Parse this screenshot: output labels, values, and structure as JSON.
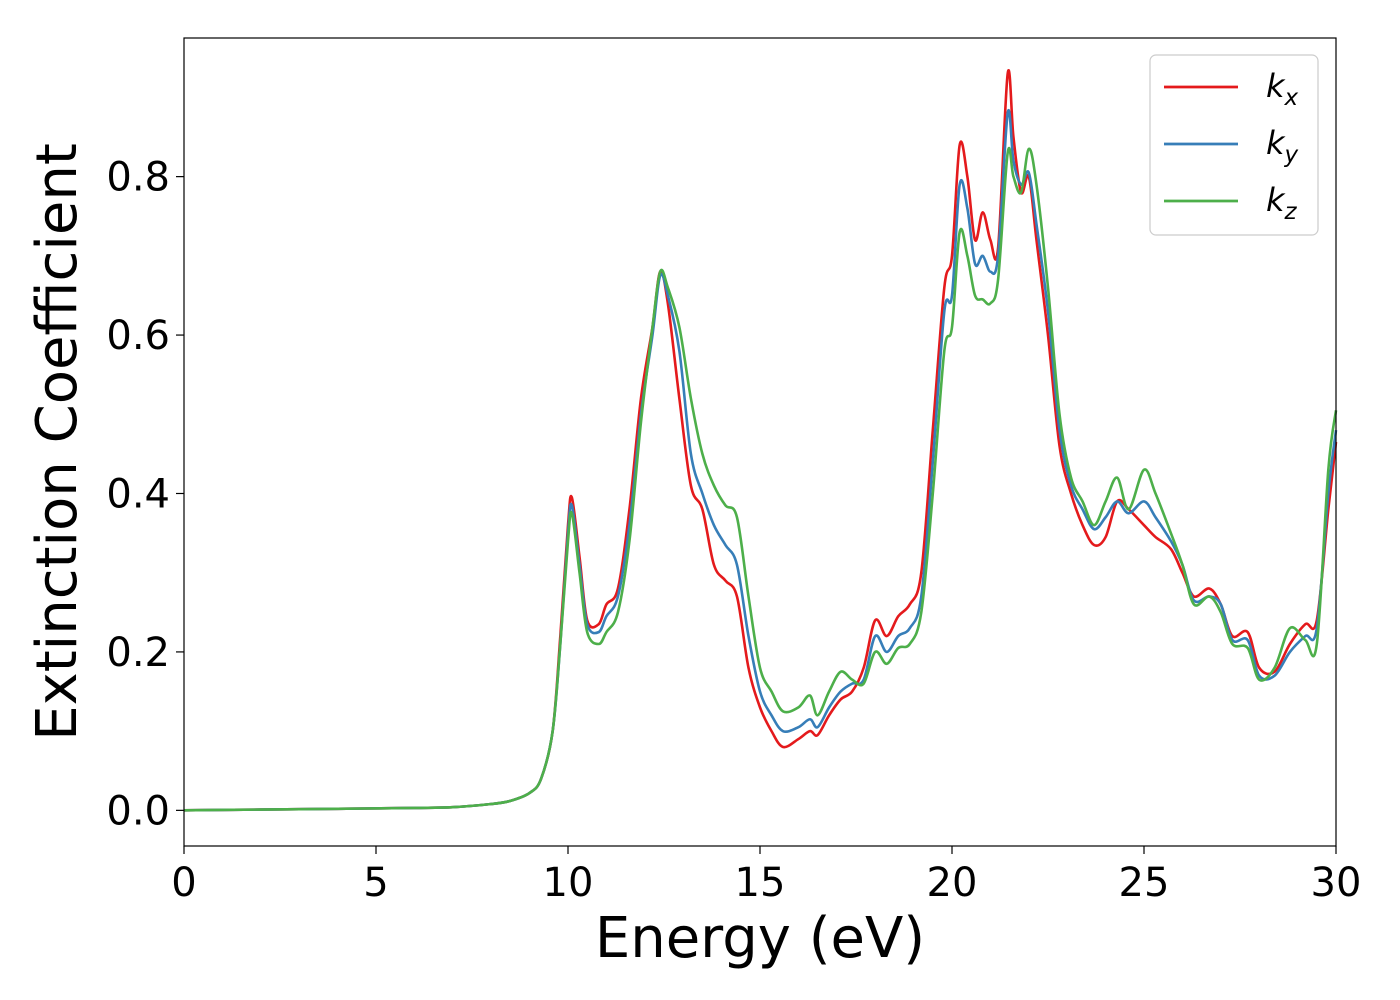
{
  "chart_data": {
    "type": "line",
    "xlabel": "Energy (eV)",
    "ylabel": "Extinction Coefficient",
    "xlim": [
      0,
      30
    ],
    "ylim": [
      -0.045,
      0.975
    ],
    "x_ticks": [
      0,
      5,
      10,
      15,
      20,
      25,
      30
    ],
    "y_ticks": [
      0.0,
      0.2,
      0.4,
      0.6,
      0.8
    ],
    "x_tick_labels": [
      "0",
      "5",
      "10",
      "15",
      "20",
      "25",
      "30"
    ],
    "y_tick_labels": [
      "0.0",
      "0.2",
      "0.4",
      "0.6",
      "0.8"
    ],
    "grid": false,
    "legend_position": "top-right",
    "x": [
      0,
      2,
      4,
      6,
      7,
      8,
      8.5,
      9,
      9.3,
      9.6,
      9.8,
      10.0,
      10.1,
      10.3,
      10.5,
      10.8,
      11.0,
      11.3,
      11.6,
      11.9,
      12.2,
      12.4,
      12.6,
      12.9,
      13.2,
      13.5,
      13.8,
      14.1,
      14.4,
      14.7,
      15.0,
      15.3,
      15.6,
      16.0,
      16.3,
      16.5,
      16.8,
      17.1,
      17.4,
      17.7,
      18.0,
      18.3,
      18.6,
      18.9,
      19.2,
      19.5,
      19.8,
      20.0,
      20.2,
      20.4,
      20.6,
      20.8,
      21.0,
      21.2,
      21.45,
      21.6,
      21.8,
      22.0,
      22.2,
      22.5,
      22.8,
      23.1,
      23.4,
      23.7,
      24.0,
      24.3,
      24.6,
      25.0,
      25.3,
      25.7,
      26.0,
      26.3,
      26.7,
      27.0,
      27.3,
      27.7,
      28.0,
      28.4,
      28.8,
      29.2,
      29.5,
      29.8,
      30.0
    ],
    "series": [
      {
        "name": "k_x",
        "color": "#e41a1c",
        "values": [
          0.0,
          0.001,
          0.002,
          0.003,
          0.004,
          0.008,
          0.012,
          0.022,
          0.04,
          0.1,
          0.22,
          0.36,
          0.395,
          0.32,
          0.24,
          0.235,
          0.26,
          0.28,
          0.38,
          0.52,
          0.61,
          0.68,
          0.64,
          0.52,
          0.41,
          0.38,
          0.31,
          0.29,
          0.27,
          0.18,
          0.13,
          0.1,
          0.08,
          0.09,
          0.1,
          0.095,
          0.12,
          0.14,
          0.15,
          0.18,
          0.24,
          0.22,
          0.245,
          0.26,
          0.3,
          0.48,
          0.66,
          0.7,
          0.84,
          0.8,
          0.72,
          0.755,
          0.72,
          0.71,
          0.93,
          0.85,
          0.78,
          0.8,
          0.72,
          0.6,
          0.46,
          0.4,
          0.36,
          0.335,
          0.345,
          0.39,
          0.38,
          0.36,
          0.345,
          0.33,
          0.3,
          0.27,
          0.28,
          0.26,
          0.22,
          0.225,
          0.18,
          0.175,
          0.21,
          0.235,
          0.24,
          0.38,
          0.465
        ]
      },
      {
        "name": "k_y",
        "color": "#377eb8",
        "values": [
          0.0,
          0.001,
          0.002,
          0.003,
          0.004,
          0.008,
          0.012,
          0.022,
          0.04,
          0.1,
          0.21,
          0.35,
          0.385,
          0.31,
          0.235,
          0.225,
          0.245,
          0.27,
          0.36,
          0.5,
          0.6,
          0.675,
          0.65,
          0.58,
          0.45,
          0.4,
          0.36,
          0.335,
          0.31,
          0.22,
          0.15,
          0.12,
          0.1,
          0.105,
          0.115,
          0.105,
          0.13,
          0.15,
          0.16,
          0.165,
          0.22,
          0.2,
          0.22,
          0.23,
          0.27,
          0.44,
          0.63,
          0.65,
          0.79,
          0.76,
          0.69,
          0.7,
          0.68,
          0.7,
          0.88,
          0.82,
          0.79,
          0.805,
          0.74,
          0.63,
          0.48,
          0.41,
          0.38,
          0.355,
          0.37,
          0.39,
          0.375,
          0.39,
          0.37,
          0.34,
          0.31,
          0.265,
          0.27,
          0.26,
          0.215,
          0.215,
          0.17,
          0.17,
          0.2,
          0.22,
          0.23,
          0.4,
          0.48
        ]
      },
      {
        "name": "k_z",
        "color": "#4daf4a",
        "values": [
          0.0,
          0.001,
          0.002,
          0.003,
          0.004,
          0.008,
          0.012,
          0.022,
          0.04,
          0.1,
          0.21,
          0.34,
          0.375,
          0.3,
          0.225,
          0.21,
          0.225,
          0.25,
          0.34,
          0.49,
          0.61,
          0.68,
          0.66,
          0.61,
          0.52,
          0.45,
          0.41,
          0.385,
          0.37,
          0.27,
          0.18,
          0.15,
          0.125,
          0.13,
          0.145,
          0.12,
          0.15,
          0.175,
          0.165,
          0.16,
          0.2,
          0.185,
          0.205,
          0.21,
          0.25,
          0.4,
          0.58,
          0.61,
          0.73,
          0.7,
          0.65,
          0.645,
          0.64,
          0.67,
          0.83,
          0.8,
          0.78,
          0.835,
          0.79,
          0.66,
          0.5,
          0.42,
          0.39,
          0.36,
          0.39,
          0.42,
          0.38,
          0.43,
          0.4,
          0.35,
          0.31,
          0.26,
          0.27,
          0.25,
          0.21,
          0.205,
          0.165,
          0.18,
          0.23,
          0.215,
          0.21,
          0.43,
          0.505
        ]
      }
    ]
  }
}
